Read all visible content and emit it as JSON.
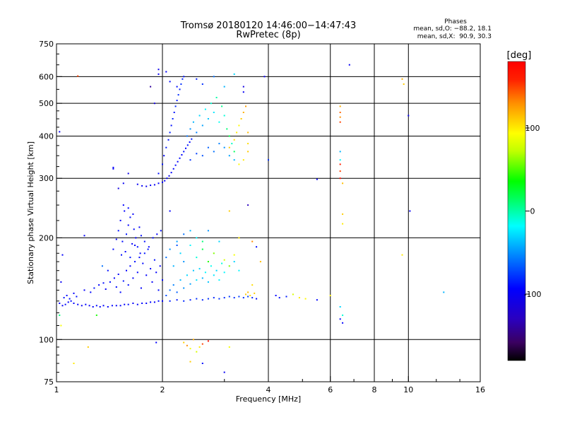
{
  "chart_data": {
    "type": "scatter",
    "title": "Tromsø 20180120 14:46:00−14:47:43",
    "subtitle": "RwPretec (8p)",
    "phases": {
      "heading": "Phases",
      "line_o": "mean, sd,O: −88.2, 18.1",
      "line_x": "mean, sd,X:  90.9, 30.3"
    },
    "xlabel": "Frequency [MHz]",
    "ylabel": "Stationary phase Virtual Height [km]",
    "x_scale": "log",
    "y_scale": "log",
    "xlim": [
      1,
      16
    ],
    "ylim": [
      75,
      750
    ],
    "x_ticks": [
      {
        "value": 1,
        "label": "1"
      },
      {
        "value": 2,
        "label": "2"
      },
      {
        "value": 4,
        "label": "4"
      },
      {
        "value": 6,
        "label": "6"
      },
      {
        "value": 8,
        "label": "8"
      },
      {
        "value": 10,
        "label": "10"
      },
      {
        "value": 16,
        "label": "16"
      }
    ],
    "x_gridlines": [
      2,
      4,
      6,
      8,
      10
    ],
    "y_ticks": [
      {
        "value": 75,
        "label": "75"
      },
      {
        "value": 100,
        "label": "100"
      },
      {
        "value": 200,
        "label": "200"
      },
      {
        "value": 300,
        "label": "300"
      },
      {
        "value": 400,
        "label": "400"
      },
      {
        "value": 500,
        "label": "500"
      },
      {
        "value": 600,
        "label": "600"
      },
      {
        "value": 750,
        "label": "750"
      }
    ],
    "y_gridlines": [
      100,
      200,
      300,
      400,
      500,
      600
    ],
    "colorbar": {
      "label": "[deg]",
      "min": -180,
      "max": 180,
      "ticks": [
        {
          "value": 100,
          "label": "100"
        },
        {
          "value": 0,
          "label": "0"
        },
        {
          "value": -100,
          "label": "-100"
        }
      ]
    },
    "points": [
      [
        1.02,
        128,
        -95
      ],
      [
        1.04,
        126,
        -98
      ],
      [
        1.06,
        127,
        -92
      ],
      [
        1.08,
        129,
        -97
      ],
      [
        1.1,
        130,
        -90
      ],
      [
        1.12,
        128,
        -96
      ],
      [
        1.15,
        127,
        -94
      ],
      [
        1.18,
        126,
        -99
      ],
      [
        1.21,
        127,
        -93
      ],
      [
        1.24,
        126,
        -100
      ],
      [
        1.27,
        125,
        -95
      ],
      [
        1.3,
        126,
        -91
      ],
      [
        1.33,
        125,
        -97
      ],
      [
        1.36,
        126,
        -94
      ],
      [
        1.4,
        125,
        -96
      ],
      [
        1.44,
        126,
        -92
      ],
      [
        1.48,
        126,
        -98
      ],
      [
        1.52,
        126,
        -93
      ],
      [
        1.56,
        127,
        -95
      ],
      [
        1.6,
        127,
        -90
      ],
      [
        1.65,
        128,
        -97
      ],
      [
        1.7,
        127,
        -94
      ],
      [
        1.75,
        128,
        -92
      ],
      [
        1.8,
        128,
        -96
      ],
      [
        1.85,
        129,
        -93
      ],
      [
        1.9,
        129,
        -95
      ],
      [
        1.95,
        130,
        -91
      ],
      [
        2.0,
        130,
        -94
      ],
      [
        1.05,
        133,
        -90
      ],
      [
        1.07,
        135,
        -93
      ],
      [
        1.09,
        132,
        -88
      ],
      [
        1.12,
        137,
        -95
      ],
      [
        1.14,
        134,
        -89
      ],
      [
        1.2,
        140,
        -96
      ],
      [
        1.25,
        138,
        -92
      ],
      [
        1.28,
        142,
        -88
      ],
      [
        1.32,
        145,
        -95
      ],
      [
        1.36,
        147,
        -90
      ],
      [
        1.38,
        141,
        -97
      ],
      [
        1.42,
        148,
        -89
      ],
      [
        1.46,
        152,
        -94
      ],
      [
        1.48,
        143,
        -91
      ],
      [
        1.5,
        156,
        -96
      ],
      [
        1.52,
        138,
        -92
      ],
      [
        1.55,
        149,
        -88
      ],
      [
        1.58,
        160,
        -95
      ],
      [
        1.6,
        145,
        -90
      ],
      [
        1.62,
        165,
        -93
      ],
      [
        1.65,
        152,
        -97
      ],
      [
        1.67,
        170,
        -89
      ],
      [
        1.7,
        158,
        -94
      ],
      [
        1.72,
        175,
        -91
      ],
      [
        1.74,
        142,
        -96
      ],
      [
        1.76,
        168,
        -92
      ],
      [
        1.78,
        180,
        -88
      ],
      [
        1.8,
        155,
        -95
      ],
      [
        1.82,
        185,
        -90
      ],
      [
        1.85,
        162,
        -93
      ],
      [
        1.87,
        148,
        -97
      ],
      [
        1.9,
        172,
        -89
      ],
      [
        1.92,
        158,
        -94
      ],
      [
        1.95,
        140,
        -91
      ],
      [
        1.97,
        165,
        -96
      ],
      [
        2.0,
        150,
        -92
      ],
      [
        1.45,
        185,
        -92
      ],
      [
        1.48,
        198,
        -95
      ],
      [
        1.5,
        210,
        -89
      ],
      [
        1.52,
        225,
        -96
      ],
      [
        1.54,
        195,
        -91
      ],
      [
        1.56,
        240,
        -94
      ],
      [
        1.58,
        205,
        -88
      ],
      [
        1.6,
        218,
        -95
      ],
      [
        1.62,
        230,
        -90
      ],
      [
        1.64,
        192,
        -97
      ],
      [
        1.66,
        212,
        -92
      ],
      [
        1.68,
        200,
        -94
      ],
      [
        1.7,
        188,
        -89
      ],
      [
        1.72,
        215,
        -96
      ],
      [
        1.74,
        203,
        -91
      ],
      [
        1.55,
        250,
        -94
      ],
      [
        1.6,
        245,
        -92
      ],
      [
        1.65,
        235,
        -97
      ],
      [
        1.53,
        178,
        -90
      ],
      [
        1.57,
        182,
        -95
      ],
      [
        1.62,
        175,
        -88
      ],
      [
        1.67,
        190,
        -93
      ],
      [
        1.73,
        180,
        -96
      ],
      [
        1.78,
        195,
        -90
      ],
      [
        1.83,
        188,
        -94
      ],
      [
        1.88,
        200,
        -92
      ],
      [
        1.93,
        205,
        -95
      ],
      [
        1.98,
        210,
        -89
      ],
      [
        2.05,
        135,
        -70
      ],
      [
        2.1,
        140,
        -60
      ],
      [
        2.15,
        145,
        -55
      ],
      [
        2.2,
        138,
        -65
      ],
      [
        2.25,
        150,
        -40
      ],
      [
        2.3,
        142,
        -50
      ],
      [
        2.35,
        155,
        -30
      ],
      [
        2.4,
        146,
        -45
      ],
      [
        2.45,
        160,
        -35
      ],
      [
        2.5,
        150,
        -25
      ],
      [
        2.55,
        162,
        -30
      ],
      [
        2.6,
        152,
        -40
      ],
      [
        2.65,
        158,
        -20
      ],
      [
        2.7,
        148,
        -35
      ],
      [
        2.75,
        165,
        -15
      ],
      [
        2.8,
        155,
        -25
      ],
      [
        2.85,
        160,
        -30
      ],
      [
        2.9,
        150,
        -20
      ],
      [
        2.95,
        168,
        -10
      ],
      [
        3.0,
        158,
        -20
      ],
      [
        3.1,
        165,
        -25
      ],
      [
        3.2,
        170,
        -30
      ],
      [
        3.3,
        160,
        -20
      ],
      [
        2.05,
        175,
        -60
      ],
      [
        2.1,
        185,
        -50
      ],
      [
        2.15,
        165,
        -40
      ],
      [
        2.2,
        195,
        -45
      ],
      [
        2.25,
        180,
        -30
      ],
      [
        2.3,
        170,
        -50
      ],
      [
        2.4,
        190,
        -20
      ],
      [
        2.5,
        175,
        -10
      ],
      [
        2.6,
        185,
        20
      ],
      [
        2.7,
        170,
        40
      ],
      [
        2.8,
        180,
        60
      ],
      [
        3.0,
        172,
        80
      ],
      [
        3.1,
        165,
        70
      ],
      [
        3.2,
        178,
        90
      ],
      [
        2.1,
        130,
        -85
      ],
      [
        2.2,
        131,
        -88
      ],
      [
        2.3,
        130,
        -82
      ],
      [
        2.4,
        131,
        -86
      ],
      [
        2.5,
        132,
        -80
      ],
      [
        2.6,
        131,
        -84
      ],
      [
        2.7,
        132,
        -79
      ],
      [
        2.8,
        133,
        -83
      ],
      [
        2.9,
        132,
        -78
      ],
      [
        3.0,
        133,
        -82
      ],
      [
        3.1,
        134,
        -77
      ],
      [
        3.2,
        133,
        -81
      ],
      [
        3.3,
        134,
        -76
      ],
      [
        3.4,
        133,
        -80
      ],
      [
        3.5,
        134,
        -75
      ],
      [
        3.6,
        133,
        -85
      ],
      [
        3.7,
        132,
        -90
      ],
      [
        3.45,
        136,
        110
      ],
      [
        3.5,
        138,
        115
      ],
      [
        3.55,
        135,
        105
      ],
      [
        3.65,
        137,
        110
      ],
      [
        4.2,
        135,
        -95
      ],
      [
        4.3,
        133,
        -90
      ],
      [
        4.5,
        134,
        -85
      ],
      [
        4.7,
        136,
        80
      ],
      [
        4.9,
        133,
        100
      ],
      [
        5.1,
        132,
        95
      ],
      [
        5.5,
        131,
        -92
      ],
      [
        1.7,
        288,
        -100
      ],
      [
        1.75,
        285,
        -98
      ],
      [
        1.8,
        284,
        -102
      ],
      [
        1.85,
        286,
        -97
      ],
      [
        1.9,
        287,
        -100
      ],
      [
        1.95,
        290,
        -96
      ],
      [
        2.0,
        292,
        -99
      ],
      [
        2.03,
        295,
        -97
      ],
      [
        2.06,
        300,
        -95
      ],
      [
        2.09,
        305,
        -98
      ],
      [
        2.12,
        312,
        -94
      ],
      [
        2.15,
        320,
        -96
      ],
      [
        2.18,
        328,
        -92
      ],
      [
        2.21,
        336,
        -95
      ],
      [
        2.24,
        344,
        -91
      ],
      [
        2.27,
        352,
        -94
      ],
      [
        2.3,
        360,
        -90
      ],
      [
        2.33,
        368,
        -93
      ],
      [
        2.36,
        376,
        -89
      ],
      [
        2.39,
        384,
        -92
      ],
      [
        2.42,
        392,
        -88
      ],
      [
        1.95,
        310,
        -90
      ],
      [
        2.0,
        330,
        -88
      ],
      [
        2.02,
        350,
        -92
      ],
      [
        2.05,
        370,
        -86
      ],
      [
        2.08,
        390,
        -89
      ],
      [
        2.1,
        410,
        -85
      ],
      [
        2.12,
        430,
        -90
      ],
      [
        2.14,
        450,
        -84
      ],
      [
        2.16,
        470,
        -88
      ],
      [
        2.18,
        490,
        -82
      ],
      [
        2.2,
        510,
        -87
      ],
      [
        2.22,
        530,
        -81
      ],
      [
        2.24,
        550,
        -86
      ],
      [
        2.26,
        570,
        -80
      ],
      [
        2.28,
        590,
        -85
      ],
      [
        2.35,
        400,
        -60
      ],
      [
        2.4,
        420,
        -50
      ],
      [
        2.45,
        440,
        -40
      ],
      [
        2.5,
        410,
        -55
      ],
      [
        2.55,
        460,
        -30
      ],
      [
        2.6,
        430,
        -45
      ],
      [
        2.65,
        480,
        -20
      ],
      [
        2.7,
        450,
        -35
      ],
      [
        2.75,
        500,
        -10
      ],
      [
        2.8,
        470,
        -25
      ],
      [
        2.85,
        520,
        0
      ],
      [
        2.9,
        440,
        -15
      ],
      [
        2.95,
        490,
        5
      ],
      [
        3.0,
        460,
        -10
      ],
      [
        3.05,
        420,
        10
      ],
      [
        3.1,
        400,
        20
      ],
      [
        3.15,
        380,
        -5
      ],
      [
        3.2,
        360,
        15
      ],
      [
        2.4,
        340,
        -80
      ],
      [
        2.5,
        355,
        -75
      ],
      [
        2.6,
        350,
        -70
      ],
      [
        2.7,
        370,
        -65
      ],
      [
        2.8,
        360,
        -60
      ],
      [
        2.9,
        380,
        -55
      ],
      [
        3.0,
        370,
        -50
      ],
      [
        3.1,
        350,
        -45
      ],
      [
        3.2,
        340,
        -40
      ],
      [
        3.1,
        370,
        110
      ],
      [
        3.2,
        390,
        105
      ],
      [
        3.25,
        410,
        100
      ],
      [
        3.3,
        430,
        95
      ],
      [
        3.35,
        450,
        110
      ],
      [
        3.4,
        470,
        120
      ],
      [
        3.45,
        490,
        125
      ],
      [
        3.5,
        410,
        115
      ],
      [
        3.5,
        380,
        105
      ],
      [
        3.5,
        360,
        110
      ],
      [
        3.4,
        340,
        100
      ],
      [
        3.3,
        330,
        95
      ],
      [
        2.1,
        580,
        -92
      ],
      [
        2.2,
        560,
        -90
      ],
      [
        2.3,
        600,
        -88
      ],
      [
        2.5,
        590,
        -85
      ],
      [
        2.6,
        570,
        -80
      ],
      [
        2.8,
        600,
        -60
      ],
      [
        3.0,
        560,
        -40
      ],
      [
        3.2,
        610,
        -30
      ],
      [
        2.05,
        620,
        -95
      ],
      [
        1.95,
        610,
        -100
      ],
      [
        1.85,
        560,
        -140
      ],
      [
        1.9,
        500,
        -110
      ],
      [
        1.95,
        630,
        -105
      ],
      [
        1.6,
        310,
        -105
      ],
      [
        1.55,
        290,
        -100
      ],
      [
        1.5,
        280,
        -110
      ],
      [
        1.45,
        320,
        -100
      ],
      [
        6.4,
        470,
        140
      ],
      [
        6.4,
        455,
        130
      ],
      [
        6.4,
        440,
        150
      ],
      [
        6.4,
        490,
        120
      ],
      [
        6.4,
        330,
        160
      ],
      [
        6.4,
        315,
        150
      ],
      [
        6.4,
        300,
        170
      ],
      [
        6.5,
        290,
        115
      ],
      [
        6.5,
        220,
        100
      ],
      [
        6.5,
        235,
        110
      ],
      [
        6.4,
        360,
        -40
      ],
      [
        6.4,
        340,
        -20
      ],
      [
        6.4,
        125,
        -30
      ],
      [
        6.4,
        115,
        -90
      ],
      [
        6.5,
        118,
        -10
      ],
      [
        6.5,
        112,
        -95
      ],
      [
        6.8,
        650,
        -100
      ],
      [
        9.6,
        590,
        120
      ],
      [
        9.7,
        570,
        110
      ],
      [
        9.6,
        178,
        100
      ],
      [
        10.0,
        460,
        -100
      ],
      [
        10.1,
        240,
        -100
      ],
      [
        12.6,
        138,
        -40
      ],
      [
        4.0,
        340,
        -80
      ],
      [
        3.9,
        600,
        -100
      ],
      [
        3.5,
        250,
        -130
      ],
      [
        3.4,
        560,
        -110
      ],
      [
        3.4,
        540,
        -100
      ],
      [
        5.5,
        298,
        -95
      ],
      [
        6.0,
        135,
        100
      ],
      [
        1.03,
        148,
        -100
      ],
      [
        1.04,
        178,
        -95
      ],
      [
        1.03,
        110,
        90
      ],
      [
        1.15,
        602,
        150
      ],
      [
        1.2,
        203,
        -95
      ],
      [
        1.12,
        85,
        100
      ],
      [
        1.23,
        95,
        110
      ],
      [
        1.45,
        323,
        -95
      ],
      [
        1.35,
        165,
        -60
      ],
      [
        1.4,
        160,
        -90
      ],
      [
        1.02,
        118,
        10
      ],
      [
        1.02,
        412,
        -100
      ],
      [
        1.3,
        118,
        40
      ],
      [
        2.3,
        98,
        110
      ],
      [
        2.35,
        96,
        130
      ],
      [
        2.4,
        94,
        90
      ],
      [
        2.45,
        100,
        120
      ],
      [
        2.5,
        92,
        80
      ],
      [
        2.55,
        95,
        100
      ],
      [
        2.6,
        97,
        150
      ],
      [
        2.7,
        99,
        170
      ],
      [
        2.4,
        86,
        110
      ],
      [
        2.6,
        85,
        -90
      ],
      [
        3.0,
        80,
        -100
      ],
      [
        3.1,
        95,
        90
      ],
      [
        1.92,
        98,
        -95
      ],
      [
        2.1,
        240,
        -95
      ],
      [
        2.2,
        190,
        -70
      ],
      [
        2.3,
        205,
        -60
      ],
      [
        2.4,
        210,
        -40
      ],
      [
        2.5,
        200,
        -20
      ],
      [
        2.6,
        195,
        10
      ],
      [
        2.7,
        210,
        -50
      ],
      [
        2.9,
        195,
        -30
      ],
      [
        3.1,
        240,
        110
      ],
      [
        3.3,
        200,
        100
      ],
      [
        3.6,
        195,
        130
      ],
      [
        3.7,
        188,
        -90
      ],
      [
        3.8,
        170,
        115
      ],
      [
        3.6,
        145,
        105
      ]
    ]
  }
}
